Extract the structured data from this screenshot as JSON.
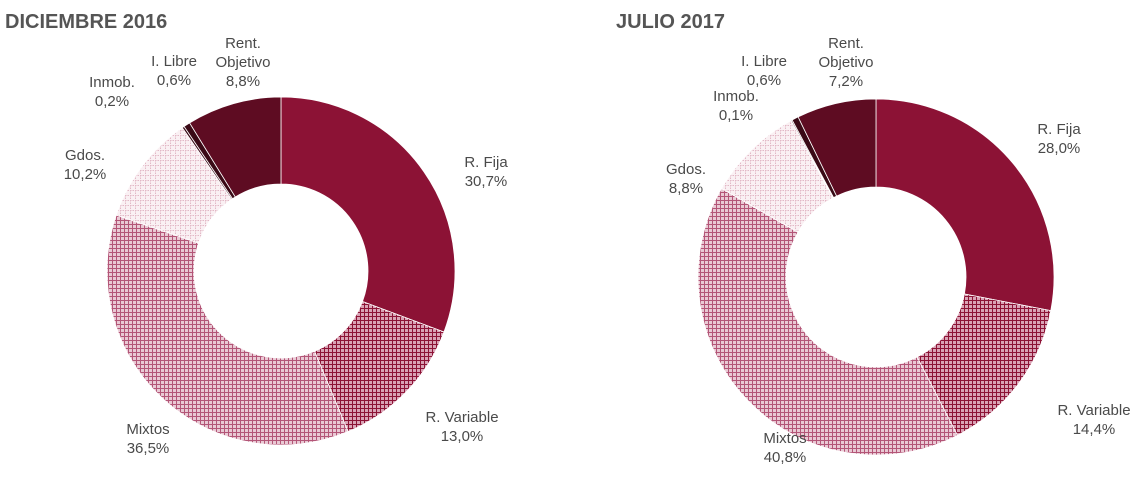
{
  "chart_data": [
    {
      "type": "donut",
      "title": "DICIEMBRE 2016",
      "slices": [
        {
          "name": "R. Fija",
          "value": 30.7,
          "value_label": "30,7%",
          "fill": "solid-fija"
        },
        {
          "name": "R. Variable",
          "value": 13.0,
          "value_label": "13,0%",
          "fill": "hatch-variable"
        },
        {
          "name": "Mixtos",
          "value": 36.5,
          "value_label": "36,5%",
          "fill": "hatch-mixtos"
        },
        {
          "name": "Gdos.",
          "value": 10.2,
          "value_label": "10,2%",
          "fill": "hatch-gdos"
        },
        {
          "name": "Inmob.",
          "value": 0.2,
          "value_label": "0,2%",
          "fill": "solid-inmob"
        },
        {
          "name": "I. Libre",
          "value": 0.6,
          "value_label": "0,6%",
          "fill": "solid-libre"
        },
        {
          "name": "Rent. Objetivo",
          "name_lines": [
            "Rent.",
            "Objetivo"
          ],
          "value": 8.8,
          "value_label": "8,8%",
          "fill": "solid-objetivo"
        }
      ]
    },
    {
      "type": "donut",
      "title": "JULIO 2017",
      "slices": [
        {
          "name": "R. Fija",
          "value": 28.0,
          "value_label": "28,0%",
          "fill": "solid-fija"
        },
        {
          "name": "R. Variable",
          "value": 14.4,
          "value_label": "14,4%",
          "fill": "hatch-variable"
        },
        {
          "name": "Mixtos",
          "value": 40.8,
          "value_label": "40,8%",
          "fill": "hatch-mixtos"
        },
        {
          "name": "Gdos.",
          "value": 8.8,
          "value_label": "8,8%",
          "fill": "hatch-gdos"
        },
        {
          "name": "Inmob.",
          "value": 0.1,
          "value_label": "0,1%",
          "fill": "solid-inmob"
        },
        {
          "name": "I. Libre",
          "value": 0.6,
          "value_label": "0,6%",
          "fill": "solid-libre"
        },
        {
          "name": "Rent. Objetivo",
          "name_lines": [
            "Rent.",
            "Objetivo"
          ],
          "value": 7.2,
          "value_label": "7,2%",
          "fill": "solid-objetivo"
        }
      ]
    }
  ],
  "colors": {
    "fija": "#8c1235",
    "variable": "#a02a4c",
    "mixtos": "#c06a86",
    "gdos": "#e6c4d0",
    "inmob": "#3a0a16",
    "libre": "#3a0a16",
    "objetivo": "#5e0c22",
    "title": "#555555",
    "label": "#4a4a4a"
  }
}
